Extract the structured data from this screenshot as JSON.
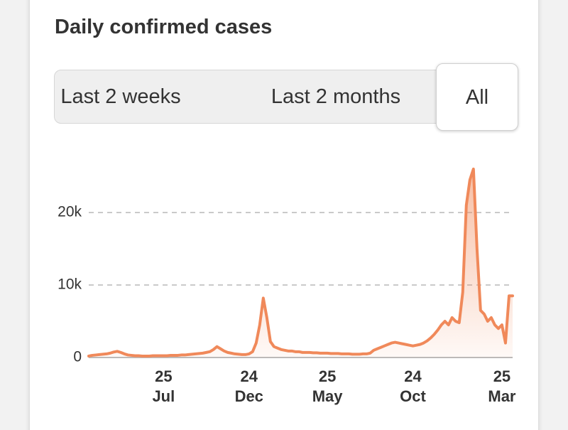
{
  "title": "Daily confirmed cases",
  "tabs": [
    "Last 2 weeks",
    "Last 2 months",
    "All"
  ],
  "selected_tab": 2,
  "chart_data": {
    "type": "area",
    "color": "#f0895a",
    "ylim": [
      0,
      27000
    ],
    "yticks": [
      0,
      {
        "value": 10000,
        "label": "10k"
      },
      {
        "value": 20000,
        "label": "20k"
      }
    ],
    "grid": true,
    "categories": [
      null,
      null,
      null,
      null,
      null,
      null,
      null,
      null,
      null,
      null,
      null,
      null,
      null,
      null,
      null,
      null,
      null,
      null,
      null,
      null,
      null,
      "25 Jul",
      null,
      null,
      null,
      null,
      null,
      null,
      null,
      null,
      null,
      null,
      null,
      null,
      null,
      null,
      null,
      null,
      null,
      null,
      null,
      null,
      null,
      null,
      null,
      "24 Dec",
      null,
      null,
      null,
      null,
      null,
      null,
      null,
      null,
      null,
      null,
      null,
      null,
      null,
      null,
      null,
      null,
      null,
      null,
      null,
      null,
      null,
      "25 May",
      null,
      null,
      null,
      null,
      null,
      null,
      null,
      null,
      null,
      null,
      null,
      null,
      null,
      null,
      null,
      null,
      null,
      null,
      null,
      null,
      null,
      null,
      null,
      "24 Oct",
      null,
      null,
      null,
      null,
      null,
      null,
      null,
      null,
      null,
      null,
      null,
      null,
      null,
      null,
      null,
      null,
      null,
      null,
      null,
      null,
      null,
      null,
      null,
      null,
      "25 Mar",
      null,
      null,
      null
    ],
    "values": [
      200,
      300,
      350,
      400,
      450,
      500,
      600,
      750,
      850,
      700,
      500,
      350,
      300,
      250,
      250,
      200,
      200,
      200,
      250,
      250,
      250,
      250,
      250,
      300,
      300,
      300,
      350,
      350,
      400,
      450,
      500,
      550,
      600,
      700,
      800,
      1100,
      1500,
      1200,
      900,
      700,
      600,
      500,
      450,
      400,
      400,
      500,
      800,
      2000,
      4500,
      8200,
      5500,
      2200,
      1500,
      1300,
      1100,
      1000,
      900,
      900,
      800,
      800,
      700,
      700,
      700,
      650,
      650,
      600,
      600,
      600,
      550,
      550,
      550,
      500,
      500,
      500,
      450,
      450,
      450,
      500,
      500,
      600,
      1000,
      1200,
      1400,
      1600,
      1800,
      2000,
      2100,
      2000,
      1900,
      1800,
      1700,
      1600,
      1700,
      1800,
      2000,
      2300,
      2700,
      3200,
      3800,
      4500,
      5000,
      4500,
      5500,
      5000,
      4800,
      9000,
      21000,
      24500,
      26000,
      15000,
      6500,
      6000,
      5000,
      5500,
      4500,
      4000,
      4500,
      2000,
      8500,
      8500
    ]
  }
}
